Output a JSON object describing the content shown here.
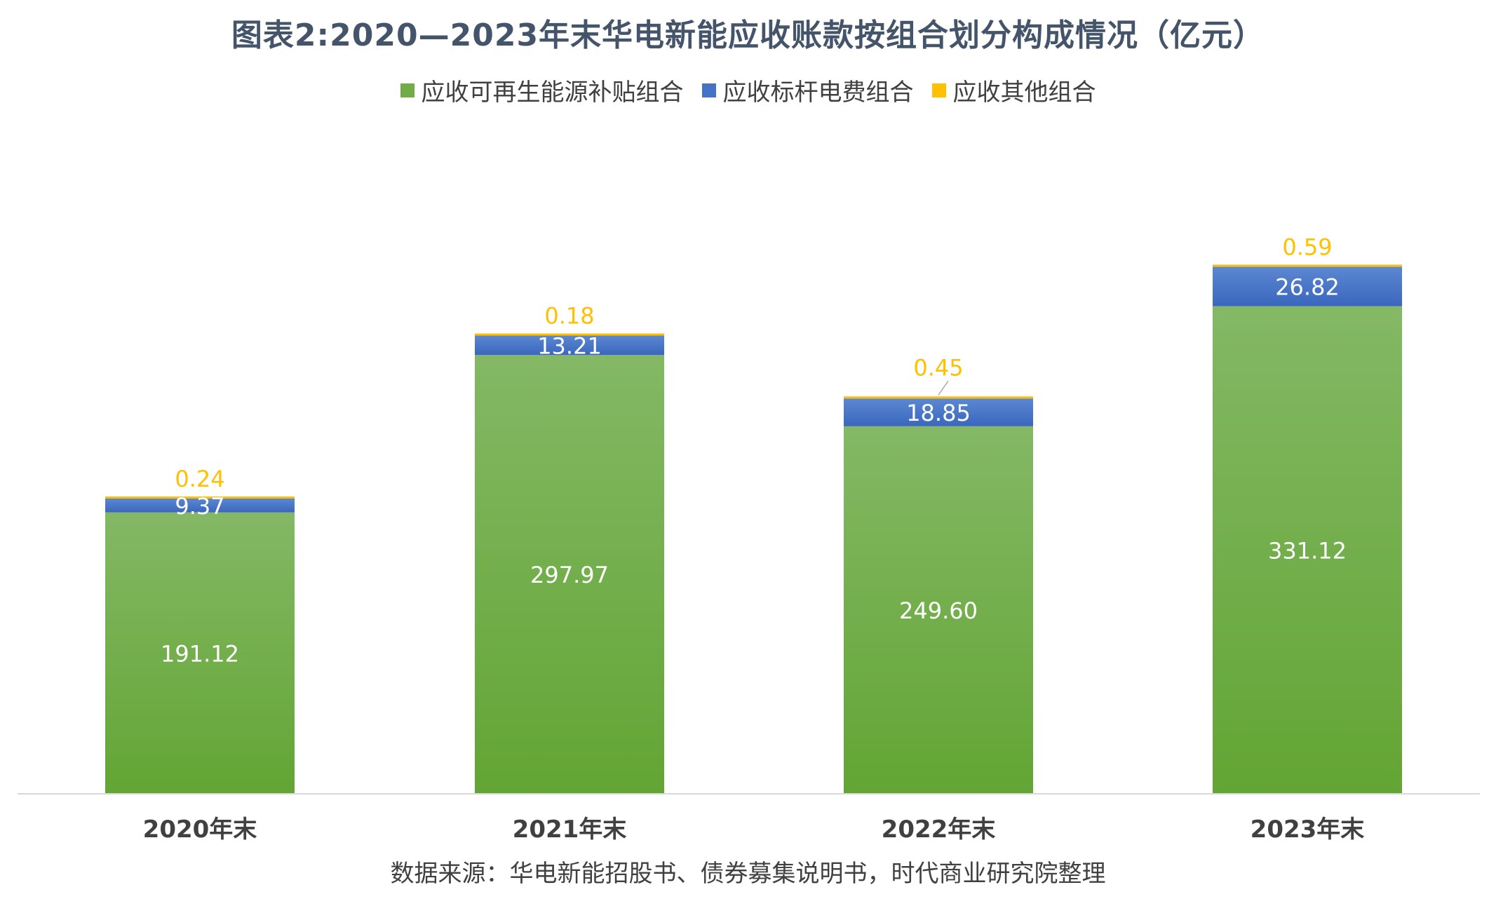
{
  "title": "图表2:2020—2023年末华电新能应收账款按组合划分构成情况（亿元）",
  "source": "数据来源：华电新能招股书、债券募集说明书，时代商业研究院整理",
  "colors": {
    "green": "#70AD47",
    "blue": "#4472C4",
    "gold": "#FFC000",
    "axis": "#D9D9D9",
    "category_text": "#404040"
  },
  "chart_data": {
    "type": "bar",
    "stacked": true,
    "categories": [
      "2020年末",
      "2021年末",
      "2022年末",
      "2023年末"
    ],
    "series": [
      {
        "name": "应收可再生能源补贴组合",
        "values": [
          191.12,
          297.97,
          249.6,
          331.12
        ],
        "labels": [
          "191.12",
          "297.97",
          "249.60",
          "331.12"
        ]
      },
      {
        "name": "应收标杆电费组合",
        "values": [
          9.37,
          13.21,
          18.85,
          26.82
        ],
        "labels": [
          "9.37",
          "13.21",
          "18.85",
          "26.82"
        ]
      },
      {
        "name": "应收其他组合",
        "values": [
          0.24,
          0.18,
          0.45,
          0.59
        ],
        "labels": [
          "0.24",
          "0.18",
          "0.45",
          "0.59"
        ]
      }
    ],
    "ylim": [
      0,
      400
    ],
    "grid": false,
    "legend_position": "top"
  }
}
